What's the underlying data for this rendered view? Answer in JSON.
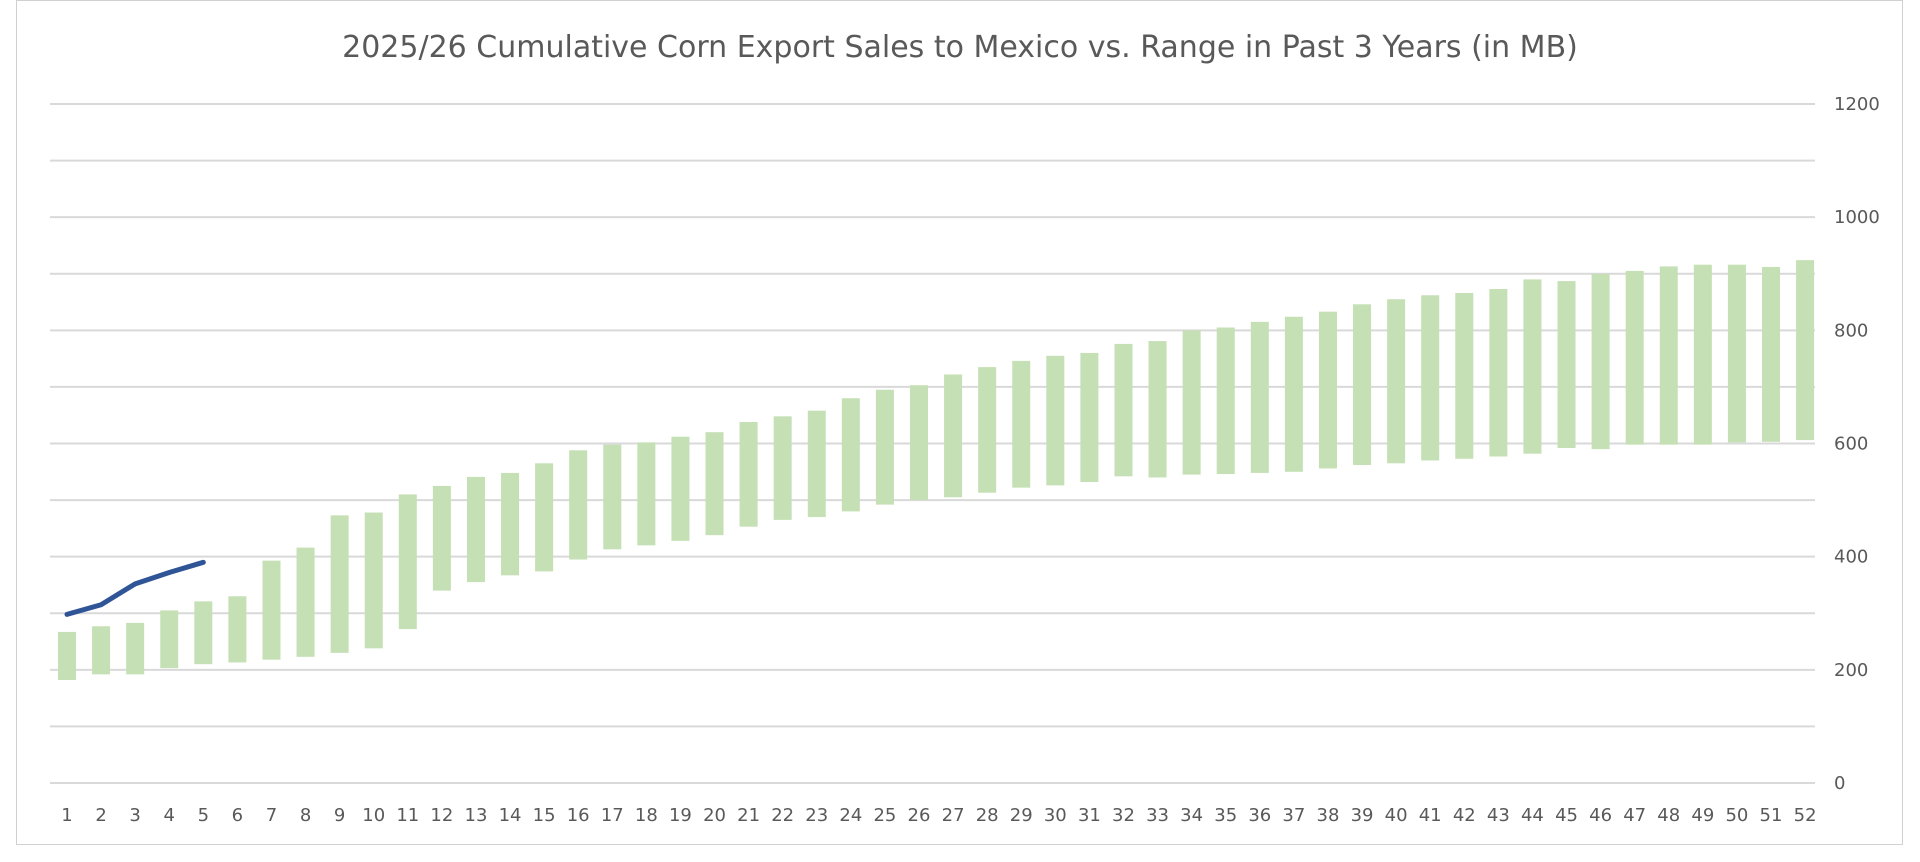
{
  "chart_data": {
    "type": "bar",
    "title": "2025/26 Cumulative Corn Export Sales to Mexico vs. Range in Past 3 Years (in MB)",
    "xlabel": "",
    "ylabel": "",
    "y_axis_side": "right",
    "ylim": [
      0,
      1200
    ],
    "y_ticks": [
      0,
      200,
      400,
      600,
      800,
      1000,
      1200
    ],
    "grid": true,
    "legend": "none",
    "categories": [
      "1",
      "2",
      "3",
      "4",
      "5",
      "6",
      "7",
      "8",
      "9",
      "10",
      "11",
      "12",
      "13",
      "14",
      "15",
      "16",
      "17",
      "18",
      "19",
      "20",
      "21",
      "22",
      "23",
      "24",
      "25",
      "26",
      "27",
      "28",
      "29",
      "30",
      "31",
      "32",
      "33",
      "34",
      "35",
      "36",
      "37",
      "38",
      "39",
      "40",
      "41",
      "42",
      "43",
      "44",
      "45",
      "46",
      "47",
      "48",
      "49",
      "50",
      "51",
      "52"
    ],
    "series": [
      {
        "kind": "floating-bar",
        "color": "#c5e0b4",
        "low": [
          182,
          192,
          192,
          203,
          210,
          213,
          218,
          223,
          230,
          238,
          272,
          340,
          355,
          367,
          374,
          395,
          413,
          420,
          428,
          438,
          453,
          465,
          470,
          480,
          492,
          500,
          505,
          513,
          522,
          526,
          532,
          542,
          540,
          545,
          546,
          548,
          550,
          556,
          562,
          565,
          570,
          573,
          577,
          582,
          592,
          590,
          598,
          598,
          598,
          602,
          603,
          606
        ],
        "high": [
          267,
          277,
          283,
          305,
          321,
          330,
          393,
          416,
          473,
          478,
          510,
          525,
          541,
          548,
          565,
          588,
          598,
          602,
          612,
          620,
          638,
          648,
          658,
          680,
          695,
          703,
          722,
          735,
          746,
          755,
          760,
          776,
          781,
          800,
          805,
          815,
          824,
          833,
          846,
          855,
          862,
          866,
          873,
          890,
          887,
          900,
          905,
          913,
          916,
          916,
          912,
          924
        ]
      },
      {
        "kind": "line",
        "color": "#2f5597",
        "x": [
          "1",
          "2",
          "3",
          "4",
          "5"
        ],
        "values": [
          298,
          315,
          352,
          372,
          390
        ]
      }
    ]
  }
}
